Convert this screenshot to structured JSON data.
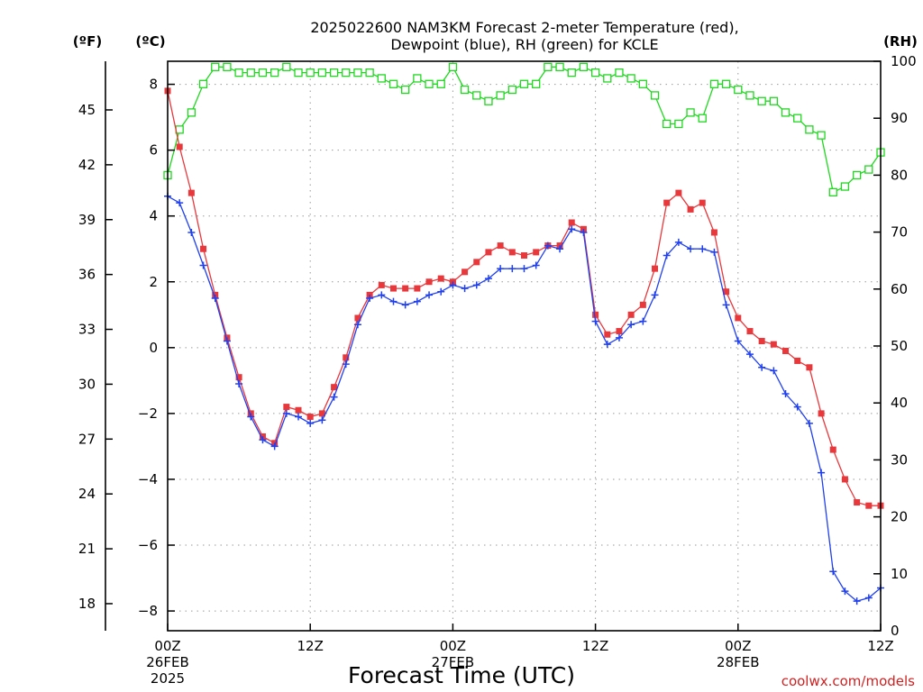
{
  "chart_data": {
    "type": "line",
    "title_line1": "2025022600 NAM3KM Forecast 2-meter Temperature (red),",
    "title_line2": "Dewpoint (blue), RH (green) for KCLE",
    "xlabel": "Forecast Time (UTC)",
    "credit": "coolwx.com/models",
    "units": {
      "fahrenheit": "(ºF)",
      "celsius": "(ºC)",
      "rh": "(RH)"
    },
    "x_range_hours": [
      0,
      60
    ],
    "x_ticks": [
      {
        "hour": 0,
        "line1": "00Z",
        "line2": "26FEB",
        "line3": "2025"
      },
      {
        "hour": 12,
        "line1": "12Z",
        "line2": "",
        "line3": ""
      },
      {
        "hour": 24,
        "line1": "00Z",
        "line2": "27FEB",
        "line3": ""
      },
      {
        "hour": 36,
        "line1": "12Z",
        "line2": "",
        "line3": ""
      },
      {
        "hour": 48,
        "line1": "00Z",
        "line2": "28FEB",
        "line3": ""
      },
      {
        "hour": 60,
        "line1": "12Z",
        "line2": "",
        "line3": ""
      }
    ],
    "y_celsius_range": [
      -8.6,
      8.7
    ],
    "y_celsius_ticks": [
      "8",
      "6",
      "4",
      "2",
      "0",
      "-2",
      "-4",
      "-6",
      "-8"
    ],
    "y_fahrenheit_ticks": [
      "45",
      "42",
      "39",
      "36",
      "33",
      "30",
      "27",
      "24",
      "21",
      "18"
    ],
    "y_rh_range": [
      0,
      100
    ],
    "y_rh_ticks": [
      "100",
      "90",
      "80",
      "70",
      "60",
      "50",
      "40",
      "30",
      "20",
      "10",
      "0"
    ],
    "grid": true,
    "hours": [
      0,
      1,
      2,
      3,
      4,
      5,
      6,
      7,
      8,
      9,
      10,
      11,
      12,
      13,
      14,
      15,
      16,
      17,
      18,
      19,
      20,
      21,
      22,
      23,
      24,
      25,
      26,
      27,
      28,
      29,
      30,
      31,
      32,
      33,
      34,
      35,
      36,
      37,
      38,
      39,
      40,
      41,
      42,
      43,
      44,
      45,
      46,
      47,
      48,
      49,
      50,
      51,
      52,
      53,
      54,
      55,
      56,
      57,
      58,
      59,
      60
    ],
    "series": [
      {
        "name": "Temperature",
        "unit": "C",
        "color": "#e8383c",
        "marker": "filled-square",
        "values": [
          7.8,
          6.1,
          4.7,
          3.0,
          1.6,
          0.3,
          -0.9,
          -2.0,
          -2.7,
          -2.9,
          -1.8,
          -1.9,
          -2.1,
          -2.0,
          -1.2,
          -0.3,
          0.9,
          1.6,
          1.9,
          1.8,
          1.8,
          1.8,
          2.0,
          2.1,
          2.0,
          2.3,
          2.6,
          2.9,
          3.1,
          2.9,
          2.8,
          2.9,
          3.1,
          3.1,
          3.8,
          3.6,
          1.0,
          0.4,
          0.5,
          1.0,
          1.3,
          2.4,
          4.4,
          4.7,
          4.2,
          4.4,
          3.5,
          1.7,
          0.9,
          0.5,
          0.2,
          0.1,
          -0.1,
          -0.4,
          -0.6,
          -2.0,
          -3.1,
          -4.0,
          -4.7,
          -4.8,
          -4.8
        ]
      },
      {
        "name": "Dewpoint",
        "unit": "C",
        "color": "#2040f0",
        "marker": "plus",
        "values": [
          4.6,
          4.4,
          3.5,
          2.5,
          1.5,
          0.2,
          -1.1,
          -2.1,
          -2.8,
          -3.0,
          -2.0,
          -2.1,
          -2.3,
          -2.2,
          -1.5,
          -0.5,
          0.7,
          1.5,
          1.6,
          1.4,
          1.3,
          1.4,
          1.6,
          1.7,
          1.9,
          1.8,
          1.9,
          2.1,
          2.4,
          2.4,
          2.4,
          2.5,
          3.1,
          3.0,
          3.6,
          3.5,
          0.8,
          0.1,
          0.3,
          0.7,
          0.8,
          1.6,
          2.8,
          3.2,
          3.0,
          3.0,
          2.9,
          1.3,
          0.2,
          -0.2,
          -0.6,
          -0.7,
          -1.4,
          -1.8,
          -2.3,
          -3.8,
          -6.8,
          -7.4,
          -7.7,
          -7.6,
          -7.3
        ]
      },
      {
        "name": "RH",
        "unit": "%",
        "color": "#20d820",
        "marker": "open-square",
        "values": [
          80,
          88,
          91,
          96,
          99,
          99,
          98,
          98,
          98,
          98,
          99,
          98,
          98,
          98,
          98,
          98,
          98,
          98,
          97,
          96,
          95,
          97,
          96,
          96,
          99,
          95,
          94,
          93,
          94,
          95,
          96,
          96,
          99,
          99,
          98,
          99,
          98,
          97,
          98,
          97,
          96,
          94,
          89,
          89,
          91,
          90,
          96,
          96,
          95,
          94,
          93,
          93,
          91,
          90,
          88,
          87,
          77,
          78,
          80,
          81,
          84
        ]
      }
    ]
  }
}
